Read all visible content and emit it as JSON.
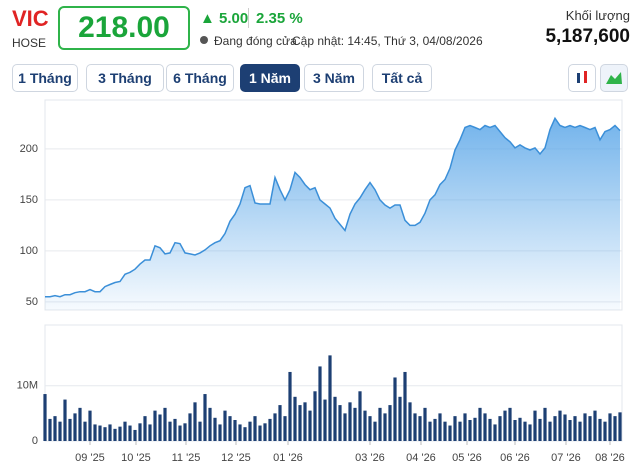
{
  "header": {
    "symbol": "VIC",
    "exchange": "HOSE",
    "price": "218.00",
    "change": "5.00",
    "change_pct": "2.35 %",
    "status": "Đang đóng cửa",
    "updated": "Cập nhật: 14:45, Thứ 3, 04/08/2026",
    "volume_label": "Khối lượng",
    "volume": "5,187,600"
  },
  "buttons": [
    "1 Tháng",
    "3 Tháng",
    "6 Tháng",
    "1 Năm",
    "3 Năm",
    "Tất cả"
  ],
  "chart_data": [
    {
      "type": "area",
      "color": "#3b8fd8",
      "ylim": [
        42,
        248
      ],
      "yticks": [
        50,
        100,
        150,
        200
      ],
      "xlim": [
        0,
        115
      ],
      "grid": true,
      "values": [
        55,
        55,
        56,
        55,
        57,
        57,
        59,
        60,
        60,
        62,
        60,
        60,
        65,
        67,
        69,
        70,
        77,
        79,
        82,
        87,
        91,
        91,
        105,
        103,
        97,
        98,
        108,
        107,
        98,
        97,
        96,
        98,
        101,
        105,
        108,
        110,
        117,
        129,
        136,
        146,
        162,
        164,
        147,
        146,
        146,
        146,
        172,
        160,
        150,
        160,
        177,
        172,
        165,
        160,
        162,
        150,
        146,
        142,
        132,
        126,
        120,
        136,
        146,
        152,
        160,
        167,
        160,
        150,
        145,
        142,
        145,
        145,
        130,
        125,
        125,
        128,
        137,
        150,
        155,
        165,
        170,
        181,
        199,
        209,
        221,
        223,
        221,
        219,
        223,
        221,
        223,
        217,
        211,
        207,
        201,
        204,
        201,
        199,
        201,
        195,
        201,
        219,
        230,
        223,
        221,
        223,
        221,
        223,
        221,
        219,
        221,
        209,
        217,
        219,
        223,
        218
      ]
    },
    {
      "type": "bar",
      "color": "#1d3f73",
      "ylim": [
        0,
        21000000
      ],
      "yticks": [
        0,
        {
          "value": 10000000,
          "label": "10M"
        }
      ],
      "xlim": [
        0,
        115
      ],
      "xticks": [
        {
          "value": 9,
          "label": "09 '25"
        },
        {
          "value": 18.2,
          "label": "10 '25"
        },
        {
          "value": 28.2,
          "label": "11 '25"
        },
        {
          "value": 38.2,
          "label": "12 '25"
        },
        {
          "value": 48.6,
          "label": "01 '26"
        },
        {
          "value": 65,
          "label": "03 '26"
        },
        {
          "value": 75.2,
          "label": "04 '26"
        },
        {
          "value": 84.4,
          "label": "05 '26"
        },
        {
          "value": 94,
          "label": "06 '26"
        },
        {
          "value": 104.2,
          "label": "07 '26"
        },
        {
          "value": 113,
          "label": "08 '26"
        }
      ],
      "values": [
        8500000,
        4000000,
        4500000,
        3500000,
        7500000,
        4000000,
        5000000,
        6000000,
        3500000,
        5500000,
        3000000,
        2800000,
        2500000,
        3000000,
        2200000,
        2600000,
        3500000,
        2800000,
        2000000,
        3200000,
        4500000,
        3000000,
        5500000,
        4800000,
        6000000,
        3500000,
        4000000,
        2800000,
        3200000,
        5000000,
        7000000,
        3500000,
        8500000,
        6000000,
        4200000,
        3000000,
        5500000,
        4500000,
        3800000,
        3000000,
        2500000,
        3500000,
        4500000,
        2800000,
        3200000,
        4000000,
        5000000,
        6500000,
        4500000,
        12500000,
        8000000,
        6500000,
        7000000,
        5500000,
        9000000,
        13500000,
        7500000,
        15500000,
        8000000,
        6500000,
        5000000,
        7000000,
        6000000,
        9000000,
        5500000,
        4500000,
        3500000,
        6000000,
        5000000,
        6500000,
        11500000,
        8000000,
        12500000,
        7000000,
        5000000,
        4500000,
        6000000,
        3500000,
        4000000,
        5000000,
        3500000,
        2800000,
        4500000,
        3500000,
        5000000,
        3800000,
        4200000,
        6000000,
        5000000,
        4000000,
        3000000,
        4500000,
        5500000,
        6000000,
        3800000,
        4200000,
        3500000,
        3000000,
        5500000,
        4000000,
        6000000,
        3500000,
        4500000,
        5500000,
        4800000,
        3800000,
        4500000,
        3500000,
        5000000,
        4500000,
        5500000,
        4000000,
        3500000,
        5000000,
        4500000,
        5187600
      ]
    }
  ]
}
